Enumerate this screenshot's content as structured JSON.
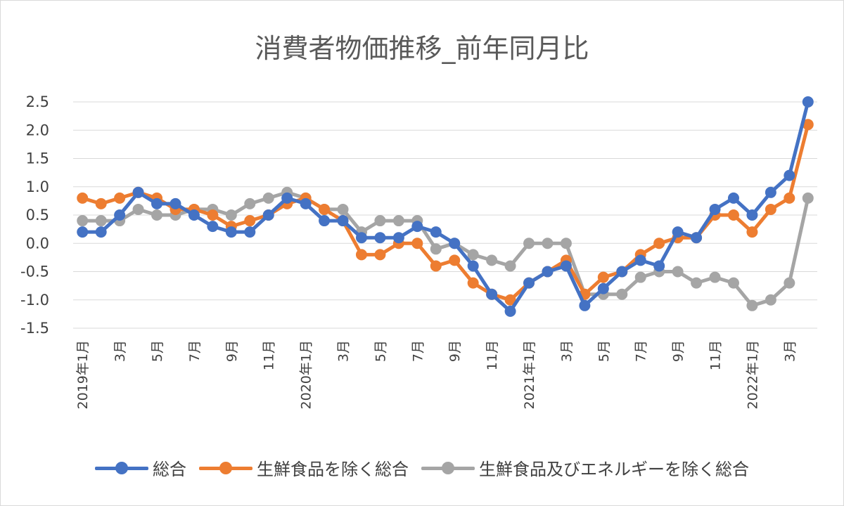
{
  "chart_data": {
    "type": "line",
    "title": "消費者物価推移_前年同月比",
    "xlabel": "",
    "ylabel": "",
    "ylim": [
      -1.5,
      2.5
    ],
    "yticks": [
      "2.5",
      "2.0",
      "1.5",
      "1.0",
      "0.5",
      "0.0",
      "-0.5",
      "-1.0",
      "-1.5"
    ],
    "ytick_values": [
      2.5,
      2.0,
      1.5,
      1.0,
      0.5,
      0.0,
      -0.5,
      -1.0,
      -1.5
    ],
    "categories": [
      "2019年1月",
      "",
      "3月",
      "",
      "5月",
      "",
      "7月",
      "",
      "9月",
      "",
      "11月",
      "",
      "2020年1月",
      "",
      "3月",
      "",
      "5月",
      "",
      "7月",
      "",
      "9月",
      "",
      "11月",
      "",
      "2021年1月",
      "",
      "3月",
      "",
      "5月",
      "",
      "7月",
      "",
      "9月",
      "",
      "11月",
      "",
      "2022年1月",
      "",
      "3月",
      ""
    ],
    "grid": true,
    "legend_position": "bottom",
    "series": [
      {
        "name": "総合",
        "color": "#4472c4",
        "values": [
          0.2,
          0.2,
          0.5,
          0.9,
          0.7,
          0.7,
          0.5,
          0.3,
          0.2,
          0.2,
          0.5,
          0.8,
          0.7,
          0.4,
          0.4,
          0.1,
          0.1,
          0.1,
          0.3,
          0.2,
          0.0,
          -0.4,
          -0.9,
          -1.2,
          -0.7,
          -0.5,
          -0.4,
          -1.1,
          -0.8,
          -0.5,
          -0.3,
          -0.4,
          0.2,
          0.1,
          0.6,
          0.8,
          0.5,
          0.9,
          1.2,
          2.5
        ]
      },
      {
        "name": "生鮮食品を除く総合",
        "color": "#ed7d31",
        "values": [
          0.8,
          0.7,
          0.8,
          0.9,
          0.8,
          0.6,
          0.6,
          0.5,
          0.3,
          0.4,
          0.5,
          0.7,
          0.8,
          0.6,
          0.4,
          -0.2,
          -0.2,
          0.0,
          0.0,
          -0.4,
          -0.3,
          -0.7,
          -0.9,
          -1.0,
          -0.7,
          -0.5,
          -0.3,
          -0.9,
          -0.6,
          -0.5,
          -0.2,
          0.0,
          0.1,
          0.1,
          0.5,
          0.5,
          0.2,
          0.6,
          0.8,
          2.1
        ]
      },
      {
        "name": "生鮮食品及びエネルギーを除く総合",
        "color": "#a5a5a5",
        "values": [
          0.4,
          0.4,
          0.4,
          0.6,
          0.5,
          0.5,
          0.6,
          0.6,
          0.5,
          0.7,
          0.8,
          0.9,
          0.8,
          0.6,
          0.6,
          0.2,
          0.4,
          0.4,
          0.4,
          -0.1,
          0.0,
          -0.2,
          -0.3,
          -0.4,
          0.0,
          0.0,
          0.0,
          -0.9,
          -0.9,
          -0.9,
          -0.6,
          -0.5,
          -0.5,
          -0.7,
          -0.6,
          -0.7,
          -1.1,
          -1.0,
          -0.7,
          0.8
        ]
      }
    ]
  }
}
